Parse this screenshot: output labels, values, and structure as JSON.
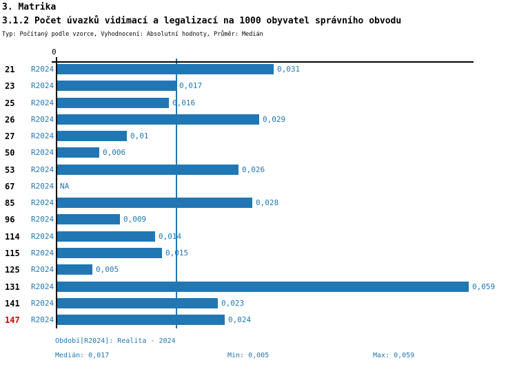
{
  "header": {
    "title": "3. Matrika",
    "subtitle": "3.1.2 Počet úvazků vidimací a legalizací na 1000 obyvatel správního obvodu",
    "meta": "Typ: Počítaný podle vzorce, Vyhodnocení: Absolutní hodnoty, Průměr: Medián"
  },
  "chart_data": {
    "type": "bar",
    "orientation": "horizontal",
    "title": "3.1.2 Počet úvazků vidimací a legalizací na 1000 obyvatel správního obvodu",
    "series_name": "R2024",
    "categories": [
      "21",
      "23",
      "25",
      "26",
      "27",
      "50",
      "53",
      "67",
      "85",
      "96",
      "114",
      "115",
      "125",
      "131",
      "141",
      "147"
    ],
    "values": [
      0.031,
      0.017,
      0.016,
      0.029,
      0.01,
      0.006,
      0.026,
      null,
      0.028,
      0.009,
      0.014,
      0.015,
      0.005,
      0.059,
      0.023,
      0.024
    ],
    "value_labels": [
      "0,031",
      "0,017",
      "0,016",
      "0,029",
      "0,01",
      "0,006",
      "0,026",
      "NA",
      "0,028",
      "0,009",
      "0,014",
      "0,015",
      "0,005",
      "0,059",
      "0,023",
      "0,024"
    ],
    "highlighted_category": "147",
    "origin_tick_label": "0",
    "xlim": [
      0,
      0.06
    ],
    "median_value": 0.017,
    "reference_line": "median",
    "legend_position": "none",
    "grid": false,
    "colors": {
      "bar": "#2077B4",
      "accent_text": "#1F77B4",
      "highlight": "#CC0000",
      "axis": "#000000"
    }
  },
  "footer": {
    "period_line": "Období[R2024]: Realita - 2024",
    "median_label": "Medián: 0,017",
    "min_label": "Min: 0,005",
    "max_label": "Max: 0,059"
  }
}
